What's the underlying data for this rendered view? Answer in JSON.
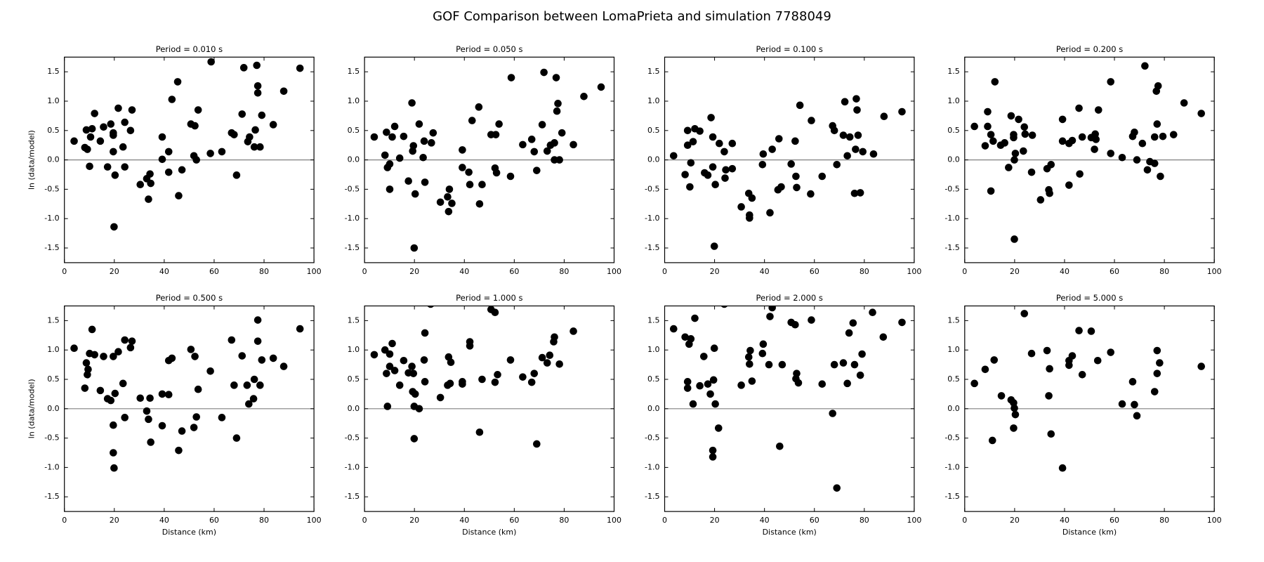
{
  "title": "GOF Comparison between LomaPrieta and simulation 7788049",
  "chart_data": [
    {
      "type": "scatter",
      "title": "Period = 0.010 s",
      "ylabel": "ln (data/model)",
      "color": "#000000",
      "hline": 0,
      "xlim": [
        0,
        100
      ],
      "ylim": [
        -1.75,
        1.75
      ],
      "xticks": [
        0,
        20,
        40,
        60,
        80,
        100
      ],
      "yticks": [
        -1.5,
        {
          "value": -1,
          "label": "-1.0"
        },
        -0.5,
        {
          "value": 0,
          "label": "0.0"
        },
        0.5,
        {
          "value": 1,
          "label": "1.0"
        },
        1.5
      ],
      "x": [
        3.9,
        8.2,
        8.8,
        9.2,
        10.1,
        10.5,
        11.1,
        12.1,
        14.4,
        15.7,
        17.3,
        18.6,
        19.6,
        19.6,
        19.6,
        20.3,
        19.9,
        21.6,
        23.5,
        24.2,
        24.2,
        27.1,
        26.5,
        30.4,
        33.0,
        33.7,
        34.3,
        34.6,
        39.2,
        39.2,
        41.8,
        41.8,
        43.1,
        45.4,
        45.8,
        47.1,
        50.7,
        52.3,
        51.9,
        52.9,
        53.6,
        58.5,
        58.8,
        63.1,
        67.0,
        68.0,
        69.0,
        71.2,
        71.9,
        73.5,
        74.2,
        76.1,
        76.5,
        77.1,
        77.5,
        77.5,
        78.4,
        79.1,
        83.7,
        87.9,
        94.4
      ],
      "values": [
        0.32,
        0.21,
        0.51,
        0.18,
        -0.11,
        0.39,
        0.53,
        0.79,
        0.32,
        0.56,
        -0.12,
        0.61,
        0.14,
        0.42,
        0.46,
        -0.26,
        -1.14,
        0.88,
        0.22,
        -0.12,
        0.64,
        0.85,
        0.5,
        -0.42,
        -0.32,
        -0.67,
        -0.24,
        -0.4,
        0.39,
        0.01,
        0.14,
        -0.21,
        1.03,
        1.33,
        -0.61,
        -0.17,
        0.61,
        0.58,
        0.07,
        0,
        0.85,
        0.11,
        1.67,
        0.14,
        0.46,
        0.43,
        -0.26,
        0.78,
        1.57,
        0.31,
        0.39,
        0.22,
        0.51,
        1.61,
        1.26,
        1.14,
        0.22,
        0.76,
        0.6,
        1.17,
        1.56
      ]
    },
    {
      "type": "scatter",
      "title": "Period = 0.050 s",
      "color": "#000000",
      "hline": 0,
      "xlim": [
        0,
        100
      ],
      "ylim": [
        -1.75,
        1.75
      ],
      "xticks": [
        0,
        20,
        40,
        60,
        80,
        100
      ],
      "yticks": [
        -1.5,
        {
          "value": -1,
          "label": "-1.0"
        },
        -0.5,
        {
          "value": 0,
          "label": "0.0"
        },
        0.5,
        {
          "value": 1,
          "label": "1.0"
        },
        1.5
      ],
      "x": [
        3.9,
        8.2,
        8.8,
        9.2,
        10.1,
        10.1,
        11.1,
        12.1,
        14.1,
        15.7,
        17.6,
        19.0,
        19.3,
        19.6,
        19.9,
        20.3,
        21.9,
        23.5,
        23.9,
        24.2,
        26.8,
        27.5,
        30.4,
        33.3,
        33.7,
        34.0,
        35.0,
        39.2,
        39.2,
        41.8,
        42.2,
        43.1,
        45.8,
        46.1,
        47.1,
        50.7,
        52.6,
        52.3,
        52.9,
        53.9,
        58.5,
        58.8,
        63.4,
        67.0,
        68.0,
        69.0,
        71.2,
        71.9,
        73.2,
        74.5,
        76.1,
        76.1,
        76.8,
        77.1,
        77.5,
        78.1,
        79.1,
        83.7,
        87.9,
        94.8
      ],
      "values": [
        0.39,
        0.08,
        0.47,
        -0.13,
        -0.5,
        -0.07,
        0.39,
        0.57,
        0.03,
        0.4,
        -0.36,
        0.97,
        0.15,
        0.24,
        -1.5,
        -0.58,
        0.61,
        0.04,
        0.32,
        -0.38,
        0.29,
        0.46,
        -0.72,
        -0.63,
        -0.88,
        -0.5,
        -0.74,
        0.17,
        -0.13,
        -0.21,
        -0.42,
        0.67,
        0.9,
        -0.75,
        -0.42,
        0.43,
        0.43,
        -0.14,
        -0.22,
        0.61,
        -0.28,
        1.4,
        0.26,
        0.35,
        0.14,
        -0.18,
        0.6,
        1.49,
        0.15,
        0.25,
        0.29,
        0,
        1.4,
        0.83,
        0.96,
        0,
        0.46,
        0.26,
        1.08,
        1.24
      ]
    },
    {
      "type": "scatter",
      "title": "Period = 0.100 s",
      "color": "#000000",
      "hline": 0,
      "xlim": [
        0,
        100
      ],
      "ylim": [
        -1.75,
        1.75
      ],
      "xticks": [
        0,
        20,
        40,
        60,
        80,
        100
      ],
      "yticks": [
        -1.5,
        {
          "value": -1,
          "label": "-1.0"
        },
        -0.5,
        {
          "value": 0,
          "label": "0.0"
        },
        0.5,
        {
          "value": 1,
          "label": "1.0"
        },
        1.5
      ],
      "x": [
        3.6,
        8.2,
        9.2,
        9.2,
        10.1,
        10.5,
        11.4,
        12.1,
        14.1,
        16.0,
        17.3,
        18.6,
        19.3,
        19.3,
        19.9,
        20.3,
        21.9,
        23.9,
        24.2,
        24.5,
        27.1,
        27.1,
        30.7,
        33.7,
        34.0,
        34.0,
        35.0,
        39.2,
        39.5,
        42.2,
        43.1,
        45.4,
        45.8,
        46.7,
        50.7,
        52.3,
        52.6,
        52.9,
        54.2,
        58.5,
        58.8,
        63.1,
        67.3,
        68.0,
        69.0,
        71.6,
        72.2,
        73.2,
        74.2,
        76.1,
        76.5,
        76.8,
        77.1,
        77.5,
        78.4,
        79.4,
        83.7,
        87.9,
        95.1
      ],
      "values": [
        0.07,
        -0.25,
        0.5,
        0.25,
        -0.46,
        -0.05,
        0.31,
        0.53,
        0.49,
        -0.22,
        -0.26,
        0.72,
        -0.12,
        0.39,
        -1.47,
        -0.42,
        0.28,
        0.14,
        -0.31,
        -0.17,
        -0.15,
        0.28,
        -0.8,
        -0.57,
        -0.94,
        -0.99,
        -0.65,
        -0.08,
        0.1,
        -0.9,
        0.18,
        -0.51,
        0.36,
        -0.46,
        -0.07,
        0.32,
        -0.28,
        -0.47,
        0.93,
        -0.58,
        0.67,
        -0.28,
        0.58,
        0.5,
        -0.08,
        0.42,
        0.99,
        0.07,
        0.39,
        -0.57,
        0.18,
        1.04,
        0.85,
        0.42,
        -0.56,
        0.14,
        0.1,
        0.74,
        0.82
      ]
    },
    {
      "type": "scatter",
      "title": "Period = 0.200 s",
      "color": "#000000",
      "hline": 0,
      "xlim": [
        0,
        100
      ],
      "ylim": [
        -1.75,
        1.75
      ],
      "xticks": [
        0,
        20,
        40,
        60,
        80,
        100
      ],
      "yticks": [
        -1.5,
        {
          "value": -1,
          "label": "-1.0"
        },
        -0.5,
        {
          "value": 0,
          "label": "0.0"
        },
        0.5,
        {
          "value": 1,
          "label": "1.0"
        },
        1.5
      ],
      "x": [
        3.9,
        8.2,
        9.2,
        9.2,
        10.5,
        10.5,
        11.4,
        12.1,
        14.4,
        16.0,
        17.6,
        18.6,
        19.6,
        19.6,
        19.9,
        20.3,
        19.9,
        21.6,
        23.5,
        23.9,
        24.2,
        26.8,
        27.1,
        30.4,
        33.0,
        33.7,
        34.0,
        34.6,
        39.2,
        39.2,
        41.8,
        41.8,
        43.1,
        45.8,
        46.1,
        47.1,
        50.7,
        52.0,
        52.3,
        52.6,
        53.6,
        58.5,
        58.5,
        63.1,
        67.3,
        68.0,
        69.0,
        71.2,
        72.2,
        73.2,
        74.2,
        76.1,
        76.1,
        76.8,
        77.1,
        77.5,
        78.4,
        79.4,
        83.7,
        87.9,
        94.8
      ],
      "values": [
        0.57,
        0.24,
        0.57,
        0.82,
        -0.53,
        0.43,
        0.32,
        1.33,
        0.25,
        0.29,
        -0.13,
        0.75,
        0.43,
        0.38,
        -1.35,
        0.11,
        0,
        0.69,
        0.15,
        0.56,
        0.44,
        -0.21,
        0.42,
        -0.68,
        -0.15,
        -0.51,
        -0.57,
        -0.08,
        0.69,
        0.32,
        -0.43,
        0.28,
        0.33,
        0.88,
        -0.24,
        0.39,
        0.38,
        0.18,
        0.44,
        0.35,
        0.85,
        0.11,
        1.33,
        0.04,
        0.4,
        0.47,
        0,
        0.28,
        1.6,
        -0.17,
        -0.03,
        0.39,
        -0.06,
        1.17,
        0.61,
        1.26,
        -0.28,
        0.4,
        0.43,
        0.97,
        0.79
      ]
    },
    {
      "type": "scatter",
      "title": "Period = 0.500 s",
      "xlabel": "Distance (km)",
      "ylabel": "ln (data/model)",
      "color": "#000000",
      "hline": 0,
      "xlim": [
        0,
        100
      ],
      "ylim": [
        -1.75,
        1.75
      ],
      "xticks": [
        0,
        20,
        40,
        60,
        80,
        100
      ],
      "yticks": [
        -1.5,
        {
          "value": -1,
          "label": "-1.0"
        },
        -0.5,
        {
          "value": 0,
          "label": "0.0"
        },
        0.5,
        {
          "value": 1,
          "label": "1.0"
        },
        1.5
      ],
      "x": [
        3.9,
        8.2,
        8.8,
        9.2,
        9.5,
        10.1,
        11.1,
        12.1,
        14.4,
        15.7,
        17.3,
        18.6,
        19.6,
        19.6,
        19.6,
        19.9,
        20.3,
        21.6,
        23.5,
        24.2,
        24.2,
        26.5,
        27.1,
        30.4,
        33.0,
        33.7,
        34.3,
        34.6,
        39.2,
        39.2,
        41.8,
        41.8,
        43.1,
        45.8,
        47.1,
        50.7,
        52.3,
        51.9,
        52.9,
        53.6,
        58.5,
        63.1,
        67.0,
        68.0,
        69.0,
        71.2,
        73.2,
        73.9,
        75.8,
        76.1,
        77.5,
        77.5,
        78.4,
        79.1,
        83.7,
        87.9,
        94.4
      ],
      "values": [
        1.03,
        0.35,
        0.78,
        0.58,
        0.67,
        0.94,
        1.35,
        0.92,
        0.31,
        0.89,
        0.17,
        0.14,
        -0.28,
        0.89,
        -0.75,
        -1.01,
        0.26,
        0.97,
        0.43,
        1.17,
        -0.15,
        1.04,
        1.15,
        0.18,
        -0.04,
        -0.18,
        0.18,
        -0.57,
        -0.29,
        0.25,
        0.24,
        0.82,
        0.86,
        -0.71,
        -0.38,
        1.01,
        0.89,
        -0.32,
        -0.14,
        0.33,
        0.64,
        -0.15,
        1.17,
        0.4,
        -0.5,
        0.9,
        0.4,
        0.08,
        0.17,
        0.5,
        1.51,
        1.15,
        0.4,
        0.83,
        0.86,
        0.72,
        1.36
      ]
    },
    {
      "type": "scatter",
      "title": "Period = 1.000 s",
      "xlabel": "Distance (km)",
      "color": "#000000",
      "hline": 0,
      "xlim": [
        0,
        100
      ],
      "ylim": [
        -1.75,
        1.75
      ],
      "xticks": [
        0,
        20,
        40,
        60,
        80,
        100
      ],
      "yticks": [
        -1.5,
        {
          "value": -1,
          "label": "-1.0"
        },
        -0.5,
        {
          "value": 0,
          "label": "0.0"
        },
        0.5,
        {
          "value": 1,
          "label": "1.0"
        },
        1.5
      ],
      "x": [
        3.9,
        8.2,
        8.8,
        9.2,
        10.1,
        11.1,
        10.1,
        12.1,
        14.1,
        15.7,
        17.6,
        19.0,
        19.3,
        19.6,
        19.9,
        19.9,
        20.3,
        21.9,
        23.9,
        24.2,
        24.2,
        26.5,
        30.4,
        33.3,
        33.7,
        34.3,
        34.6,
        39.2,
        39.2,
        42.2,
        42.2,
        46.1,
        47.1,
        50.7,
        52.3,
        52.3,
        53.3,
        58.5,
        63.4,
        67.0,
        68.0,
        69.0,
        71.2,
        73.2,
        74.2,
        75.8,
        76.1,
        78.1,
        83.7
      ],
      "values": [
        0.92,
        1.0,
        0.6,
        0.04,
        0.93,
        1.11,
        0.72,
        0.65,
        0.4,
        0.82,
        0.61,
        0.72,
        0.29,
        0.6,
        -0.51,
        0.04,
        0.25,
        0,
        0.83,
        1.29,
        0.46,
        1.78,
        0.19,
        0.4,
        0.88,
        0.43,
        0.79,
        0.46,
        0.42,
        1.14,
        1.07,
        -0.4,
        0.5,
        1.69,
        1.64,
        0.45,
        0.58,
        0.83,
        0.54,
        0.45,
        0.6,
        -0.6,
        0.87,
        0.78,
        0.91,
        1.14,
        1.22,
        0.76,
        1.32
      ]
    },
    {
      "type": "scatter",
      "title": "Period = 2.000 s",
      "xlabel": "Distance (km)",
      "color": "#000000",
      "hline": 0,
      "xlim": [
        0,
        100
      ],
      "ylim": [
        -1.75,
        1.75
      ],
      "xticks": [
        0,
        20,
        40,
        60,
        80,
        100
      ],
      "yticks": [
        -1.5,
        {
          "value": -1,
          "label": "-1.0"
        },
        -0.5,
        {
          "value": 0,
          "label": "0.0"
        },
        0.5,
        {
          "value": 1,
          "label": "1.0"
        },
        1.5
      ],
      "x": [
        3.6,
        8.2,
        9.2,
        9.2,
        9.8,
        10.5,
        11.4,
        12.1,
        14.1,
        15.7,
        17.3,
        18.3,
        19.3,
        19.3,
        19.6,
        19.9,
        20.3,
        21.6,
        23.9,
        30.7,
        33.7,
        34.0,
        34.3,
        35.0,
        39.2,
        39.5,
        41.8,
        42.2,
        43.1,
        46.1,
        47.1,
        50.7,
        52.3,
        52.6,
        52.9,
        53.6,
        58.8,
        63.1,
        67.3,
        68.0,
        69.0,
        71.6,
        73.2,
        73.9,
        75.5,
        76.1,
        78.4,
        79.1,
        83.3,
        87.6,
        95.1
      ],
      "values": [
        1.36,
        1.22,
        0.46,
        0.35,
        1.1,
        1.19,
        0.08,
        1.54,
        0.39,
        0.89,
        0.42,
        0.25,
        -0.71,
        -0.82,
        0.49,
        1.03,
        0.08,
        -0.33,
        1.78,
        0.4,
        0.88,
        0.76,
        0.99,
        0.47,
        0.94,
        1.1,
        0.75,
        1.57,
        1.72,
        -0.64,
        0.75,
        1.47,
        1.43,
        0.51,
        0.6,
        0.44,
        1.51,
        0.42,
        -0.08,
        0.75,
        -1.35,
        0.78,
        0.43,
        1.29,
        1.46,
        0.75,
        0.57,
        0.93,
        1.64,
        1.22,
        1.47
      ]
    },
    {
      "type": "scatter",
      "title": "Period = 5.000 s",
      "xlabel": "Distance (km)",
      "color": "#000000",
      "hline": 0,
      "xlim": [
        0,
        100
      ],
      "ylim": [
        -1.75,
        1.75
      ],
      "xticks": [
        0,
        20,
        40,
        60,
        80,
        100
      ],
      "yticks": [
        -1.5,
        {
          "value": -1,
          "label": "-1.0"
        },
        -0.5,
        {
          "value": 0,
          "label": "0.0"
        },
        0.5,
        {
          "value": 1,
          "label": "1.0"
        },
        1.5
      ],
      "x": [
        3.9,
        8.2,
        11.1,
        11.8,
        14.7,
        18.6,
        19.6,
        19.6,
        19.9,
        20.3,
        23.9,
        26.8,
        33.0,
        33.7,
        34.0,
        34.6,
        39.2,
        41.8,
        41.8,
        43.1,
        45.8,
        47.1,
        50.7,
        53.3,
        58.5,
        63.1,
        67.3,
        68.0,
        69.0,
        76.1,
        77.1,
        77.1,
        78.1,
        94.8
      ],
      "values": [
        0.43,
        0.67,
        -0.54,
        0.83,
        0.22,
        0.15,
        -0.33,
        0.1,
        0.01,
        -0.1,
        1.62,
        0.94,
        0.99,
        0.22,
        0.68,
        -0.43,
        -1.01,
        0.82,
        0.74,
        0.9,
        1.33,
        0.58,
        1.32,
        0.82,
        0.96,
        0.08,
        0.46,
        0.07,
        -0.12,
        0.29,
        0.99,
        0.6,
        0.78,
        0.72
      ]
    }
  ]
}
